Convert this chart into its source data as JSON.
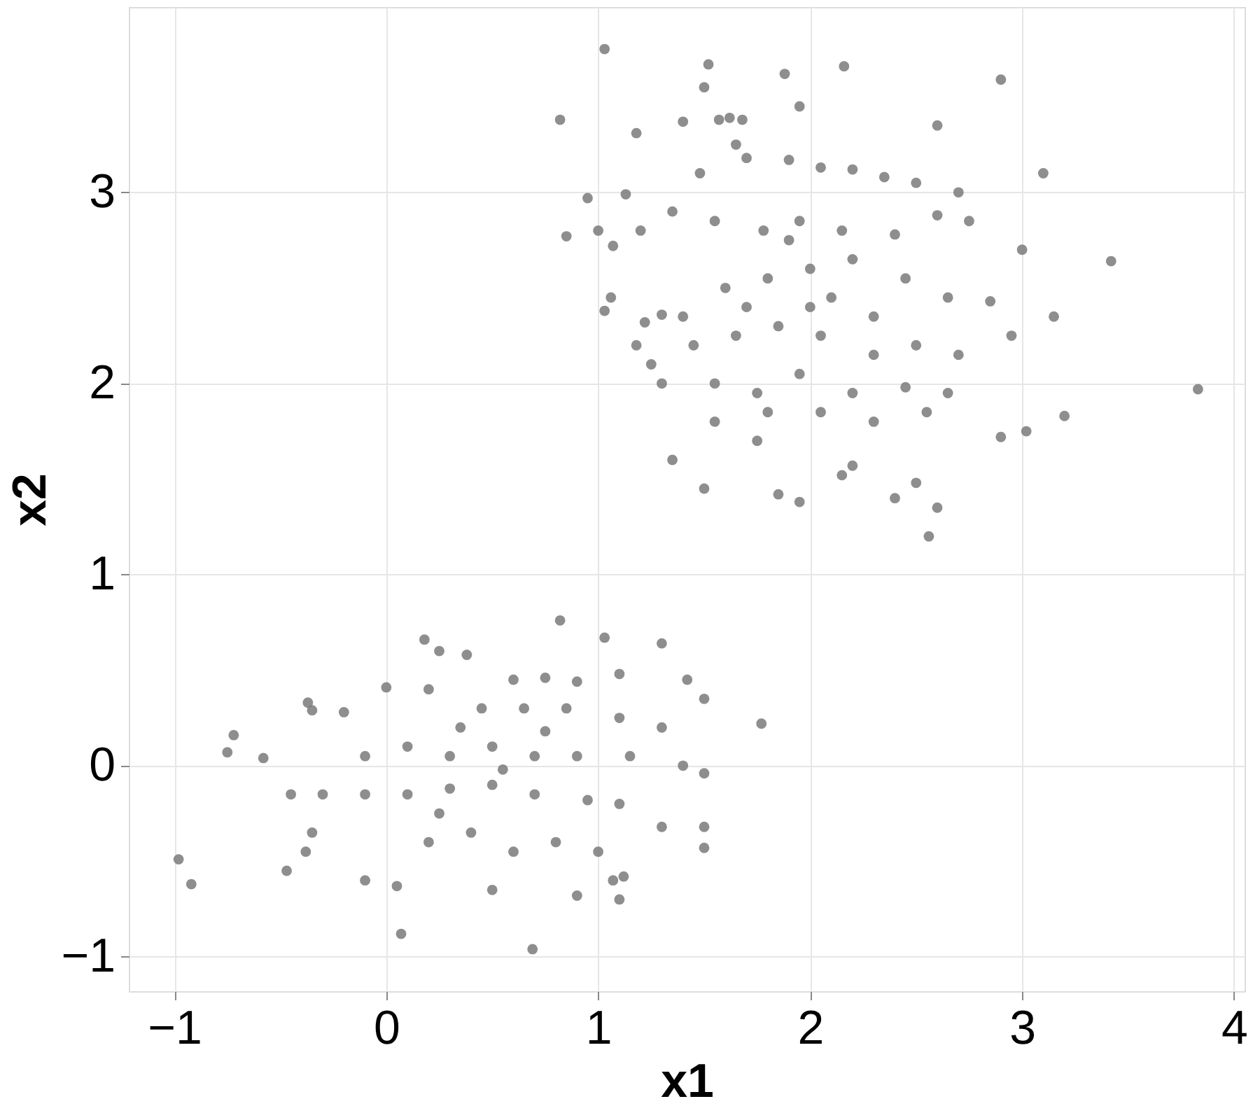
{
  "chart_data": {
    "type": "scatter",
    "xlabel": "x1",
    "ylabel": "x2",
    "xlim": [
      -1.215,
      4.05
    ],
    "ylim": [
      -1.18,
      3.97
    ],
    "xticks": [
      -1,
      0,
      1,
      2,
      3,
      4
    ],
    "yticks": [
      -1,
      0,
      1,
      2,
      3
    ],
    "grid": true,
    "marker": "circle",
    "series": [
      {
        "color": "#7a7a7a",
        "x": [
          1.03,
          1.52,
          1.88,
          2.16,
          2.9,
          1.5,
          0.82,
          1.57,
          1.62,
          1.4,
          1.68,
          2.6,
          1.18,
          1.65,
          1.95,
          1.7,
          3.1,
          0.95,
          1.13,
          1.48,
          1.9,
          2.05,
          2.2,
          2.35,
          2.5,
          2.7,
          0.85,
          1.0,
          1.07,
          1.2,
          1.35,
          1.55,
          1.78,
          1.95,
          2.15,
          2.4,
          2.6,
          2.75,
          3.0,
          3.42,
          1.06,
          1.03,
          1.22,
          1.3,
          1.4,
          1.6,
          1.8,
          2.0,
          2.2,
          2.45,
          2.65,
          2.85,
          3.15,
          1.18,
          1.25,
          1.45,
          1.65,
          1.85,
          2.05,
          2.3,
          2.5,
          2.7,
          2.95,
          1.3,
          1.55,
          1.75,
          1.95,
          2.2,
          2.45,
          2.65,
          3.83,
          1.55,
          1.8,
          2.05,
          2.3,
          2.55,
          2.9,
          3.02,
          3.2,
          1.5,
          1.85,
          1.95,
          2.15,
          2.4,
          2.5,
          2.6,
          2.56,
          1.35,
          1.75,
          2.2,
          1.9,
          2.1,
          2.3,
          1.7,
          2.0,
          0.82,
          1.03,
          0.18,
          0.25,
          0.38,
          0.6,
          0.75,
          0.9,
          1.1,
          1.3,
          1.42,
          1.5,
          1.77,
          -0.37,
          -0.35,
          -0.72,
          -0.75,
          -0.58,
          -0.2,
          0.0,
          0.2,
          0.45,
          0.65,
          0.85,
          1.1,
          1.3,
          -0.1,
          0.1,
          0.3,
          0.5,
          0.7,
          0.9,
          1.15,
          1.4,
          1.5,
          -0.45,
          -0.3,
          -0.1,
          0.1,
          0.3,
          0.5,
          0.7,
          0.95,
          1.1,
          1.3,
          1.5,
          1.5,
          -0.35,
          -0.38,
          -0.47,
          -0.1,
          0.05,
          0.2,
          0.4,
          0.6,
          0.8,
          1.0,
          1.12,
          1.07,
          1.1,
          0.9,
          0.5,
          0.07,
          0.69,
          -0.98,
          -0.92,
          0.35,
          0.55,
          0.25,
          0.75
        ],
        "values": [
          3.75,
          3.67,
          3.62,
          3.66,
          3.59,
          3.55,
          3.38,
          3.38,
          3.39,
          3.37,
          3.38,
          3.35,
          3.31,
          3.25,
          3.45,
          3.18,
          3.1,
          2.97,
          2.99,
          3.1,
          3.17,
          3.13,
          3.12,
          3.08,
          3.05,
          3.0,
          2.77,
          2.8,
          2.72,
          2.8,
          2.9,
          2.85,
          2.8,
          2.85,
          2.8,
          2.78,
          2.88,
          2.85,
          2.7,
          2.64,
          2.45,
          2.38,
          2.32,
          2.36,
          2.35,
          2.5,
          2.55,
          2.6,
          2.65,
          2.55,
          2.45,
          2.43,
          2.35,
          2.2,
          2.1,
          2.2,
          2.25,
          2.3,
          2.25,
          2.15,
          2.2,
          2.15,
          2.25,
          2.0,
          2.0,
          1.95,
          2.05,
          1.95,
          1.98,
          1.95,
          1.97,
          1.8,
          1.85,
          1.85,
          1.8,
          1.85,
          1.72,
          1.75,
          1.83,
          1.45,
          1.42,
          1.38,
          1.52,
          1.4,
          1.48,
          1.35,
          1.2,
          1.6,
          1.7,
          1.57,
          2.75,
          2.45,
          2.35,
          2.4,
          2.4,
          0.76,
          0.67,
          0.66,
          0.6,
          0.58,
          0.45,
          0.46,
          0.44,
          0.48,
          0.64,
          0.45,
          0.35,
          0.22,
          0.33,
          0.29,
          0.16,
          0.07,
          0.04,
          0.28,
          0.41,
          0.4,
          0.3,
          0.3,
          0.3,
          0.25,
          0.2,
          0.05,
          0.1,
          0.05,
          0.1,
          0.05,
          0.05,
          0.05,
          0.0,
          -0.04,
          -0.15,
          -0.15,
          -0.15,
          -0.15,
          -0.12,
          -0.1,
          -0.15,
          -0.18,
          -0.2,
          -0.32,
          -0.32,
          -0.43,
          -0.35,
          -0.45,
          -0.55,
          -0.6,
          -0.63,
          -0.4,
          -0.35,
          -0.45,
          -0.4,
          -0.45,
          -0.58,
          -0.6,
          -0.7,
          -0.68,
          -0.65,
          -0.88,
          -0.96,
          -0.49,
          -0.62,
          0.2,
          -0.02,
          -0.25,
          0.18
        ]
      }
    ]
  }
}
